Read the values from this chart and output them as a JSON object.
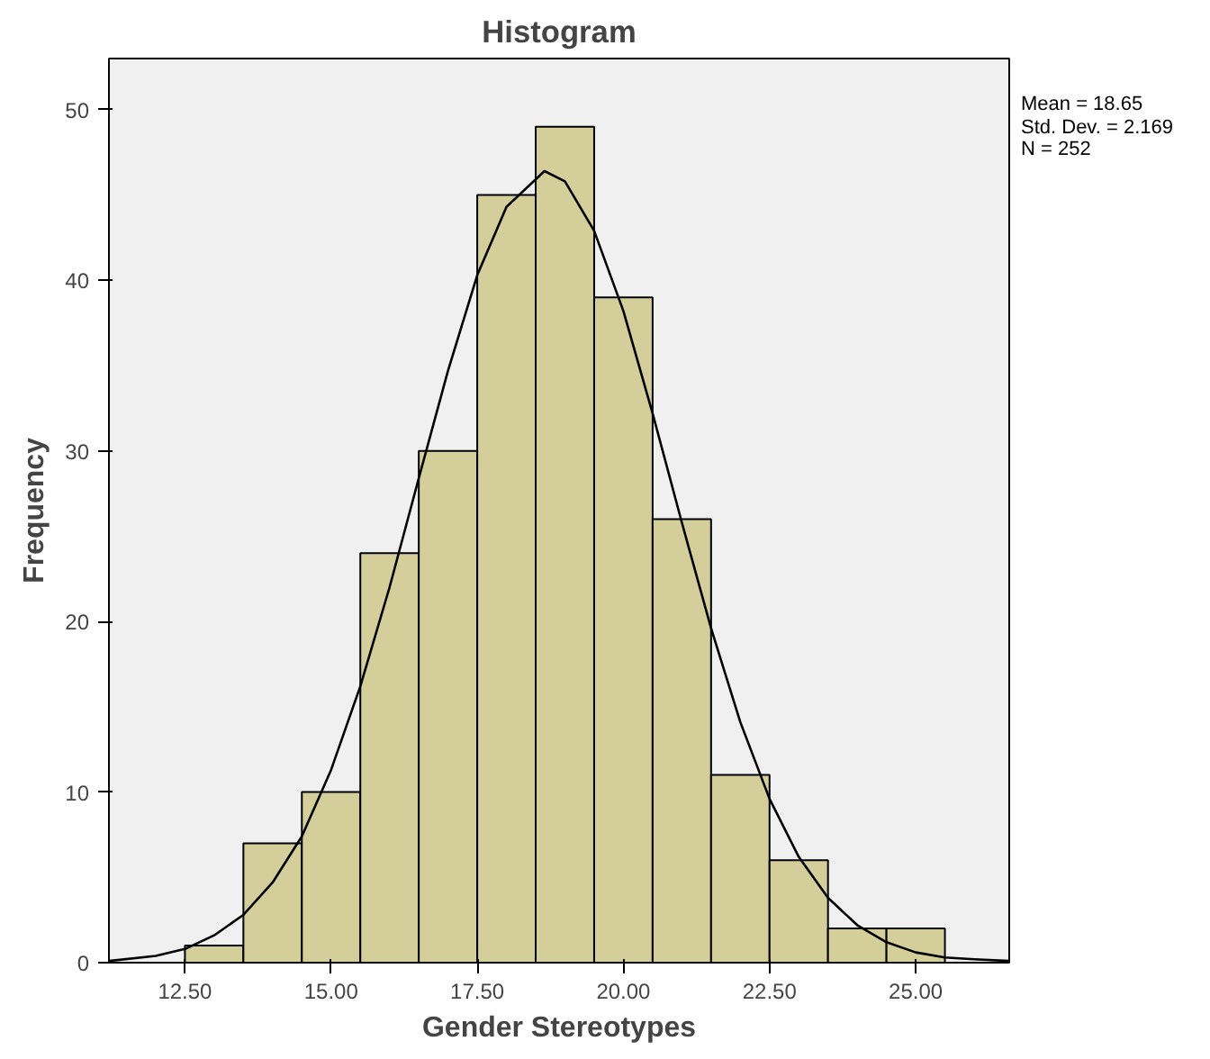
{
  "chart_data": {
    "type": "histogram",
    "title": "Histogram",
    "xlabel": "Gender Stereotypes",
    "ylabel": "Frequency",
    "bins": [
      12.5,
      13.5,
      14.5,
      15.5,
      16.5,
      17.5,
      18.5,
      19.5,
      20.5,
      21.5,
      22.5,
      23.5,
      24.5,
      25.5
    ],
    "series": [
      {
        "color": "#d3ce9a",
        "values": [
          1,
          7,
          10,
          24,
          30,
          45,
          49,
          39,
          26,
          11,
          6,
          2,
          2
        ]
      },
      {
        "type": "line",
        "color": "#000000",
        "x": [
          11.2,
          12,
          12.5,
          13,
          13.5,
          14,
          14.5,
          15,
          15.5,
          16,
          16.5,
          17,
          17.5,
          18,
          18.65,
          19,
          19.5,
          20,
          20.5,
          21,
          21.5,
          22,
          22.5,
          23,
          23.5,
          24,
          24.5,
          25,
          25.5,
          26,
          26.6
        ],
        "values": [
          0.1,
          0.4,
          0.8,
          1.6,
          2.8,
          4.7,
          7.4,
          11.3,
          16.2,
          22,
          28.4,
          34.7,
          40.3,
          44.3,
          46.4,
          45.8,
          42.9,
          38.2,
          32.2,
          25.8,
          19.6,
          14.1,
          9.6,
          6.2,
          3.8,
          2.2,
          1.2,
          0.6,
          0.3,
          0.2,
          0.1
        ]
      }
    ],
    "xlim": [
      11.2,
      26.6
    ],
    "ylim": [
      0,
      53
    ],
    "xticks": [
      {
        "value": 12.5,
        "label": "12.50"
      },
      {
        "value": 15,
        "label": "15.00"
      },
      {
        "value": 17.5,
        "label": "17.50"
      },
      {
        "value": 20,
        "label": "20.00"
      },
      {
        "value": 22.5,
        "label": "22.50"
      },
      {
        "value": 25,
        "label": "25.00"
      }
    ],
    "yticks": [
      0,
      10,
      20,
      30,
      40,
      50
    ],
    "grid": false,
    "marker": "none",
    "line_style": "solid",
    "annotations": [
      "Mean = 18.65",
      "Std. Dev. = 2.169",
      "N = 252"
    ]
  }
}
